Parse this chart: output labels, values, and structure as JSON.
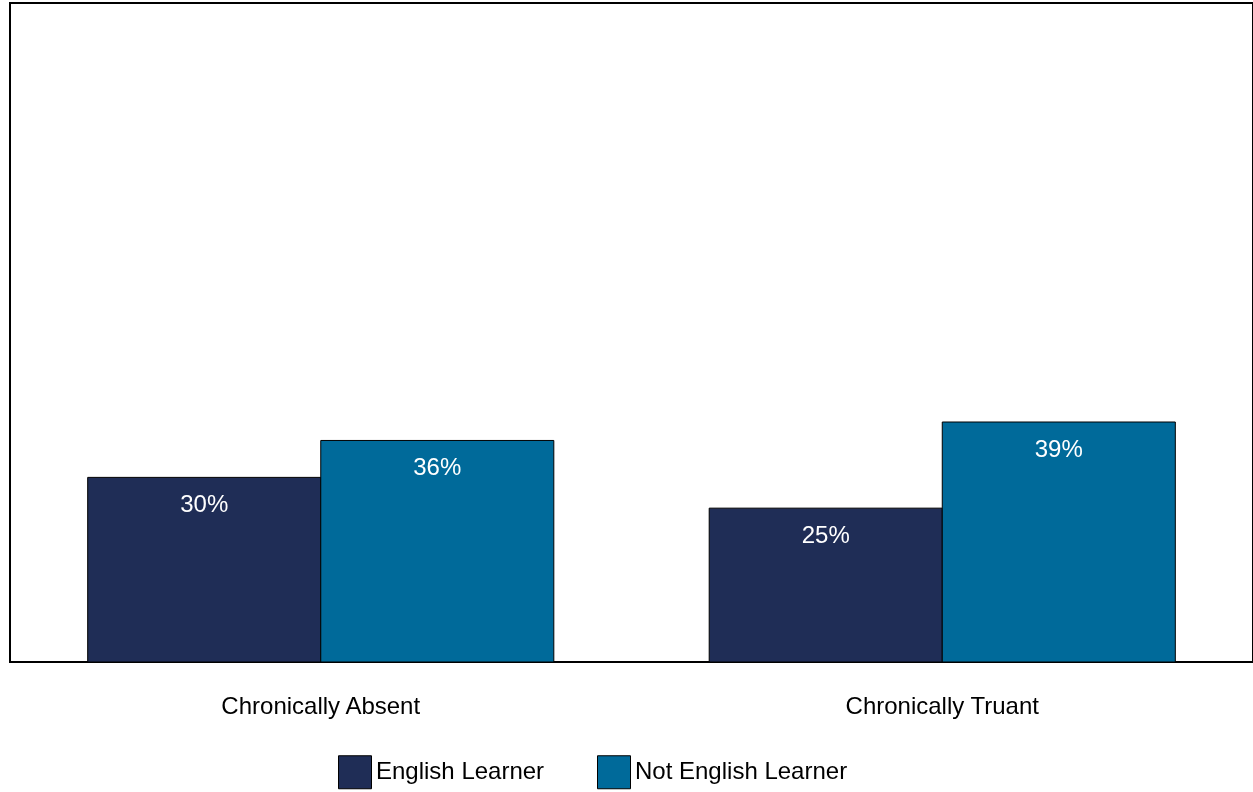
{
  "chart_data": {
    "type": "bar",
    "categories": [
      "Chronically Absent",
      "Chronically Truant"
    ],
    "series": [
      {
        "name": "English Learner",
        "color": "#1f2d56",
        "values": [
          30,
          25
        ],
        "value_labels": [
          "30%",
          "25%"
        ]
      },
      {
        "name": "Not English Learner",
        "color": "#006a9a",
        "values": [
          36,
          39
        ],
        "value_labels": [
          "36%",
          "39%"
        ]
      }
    ],
    "legend": "bottom"
  }
}
